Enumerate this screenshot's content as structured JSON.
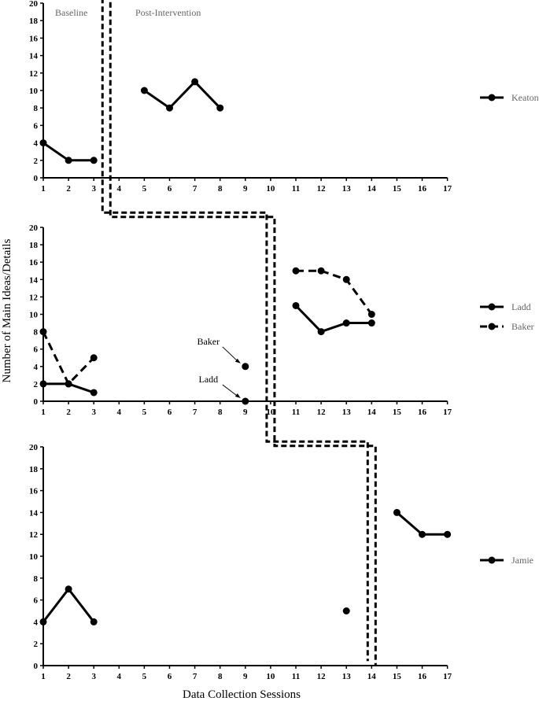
{
  "phase_labels": [
    "Baseline",
    "Post-Intervention"
  ],
  "ylabel": "Number of Main Ideas/Details",
  "xlabel": "Data Collection Sessions",
  "chart_data": [
    {
      "type": "line",
      "xlim": [
        1,
        17
      ],
      "ylim": [
        0,
        20
      ],
      "x_ticks": [
        1,
        2,
        3,
        4,
        5,
        6,
        7,
        8,
        9,
        10,
        11,
        12,
        13,
        14,
        15,
        16,
        17
      ],
      "y_ticks": [
        0,
        2,
        4,
        6,
        8,
        10,
        12,
        14,
        16,
        18,
        20
      ],
      "phase_change_after": 3.5,
      "series": [
        {
          "name": "Keaton",
          "style": "solid",
          "points": [
            [
              1,
              4
            ],
            [
              2,
              2
            ],
            [
              3,
              2
            ],
            [
              5,
              10
            ],
            [
              6,
              8
            ],
            [
              7,
              11
            ],
            [
              8,
              8
            ]
          ],
          "segments": [
            [
              0,
              1,
              2
            ],
            [
              3,
              4,
              5,
              6
            ]
          ]
        }
      ],
      "legend": [
        "Keaton"
      ]
    },
    {
      "type": "line",
      "xlim": [
        1,
        17
      ],
      "ylim": [
        0,
        20
      ],
      "x_ticks": [
        1,
        2,
        3,
        4,
        5,
        6,
        7,
        8,
        9,
        10,
        11,
        12,
        13,
        14,
        15,
        16,
        17
      ],
      "y_ticks": [
        0,
        2,
        4,
        6,
        8,
        10,
        12,
        14,
        16,
        18,
        20
      ],
      "phase_change_after": 10,
      "series": [
        {
          "name": "Ladd",
          "style": "solid",
          "points": [
            [
              1,
              2
            ],
            [
              2,
              2
            ],
            [
              3,
              1
            ],
            [
              9,
              0
            ],
            [
              11,
              11
            ],
            [
              12,
              8
            ],
            [
              13,
              9
            ],
            [
              14,
              9
            ]
          ],
          "segments": [
            [
              0,
              1,
              2
            ],
            [
              3
            ],
            [
              4,
              5,
              6,
              7
            ]
          ]
        },
        {
          "name": "Baker",
          "style": "dashed",
          "points": [
            [
              1,
              8
            ],
            [
              2,
              2
            ],
            [
              3,
              5
            ],
            [
              9,
              4
            ],
            [
              11,
              15
            ],
            [
              12,
              15
            ],
            [
              13,
              14
            ],
            [
              14,
              10
            ]
          ],
          "segments": [
            [
              0,
              1,
              2
            ],
            [
              3
            ],
            [
              4,
              5,
              6,
              7
            ]
          ]
        }
      ],
      "legend": [
        "Ladd",
        "Baker"
      ],
      "annotations": [
        {
          "text": "Baker",
          "points_to": [
            9,
            4
          ]
        },
        {
          "text": "Ladd",
          "points_to": [
            9,
            0
          ]
        }
      ]
    },
    {
      "type": "line",
      "xlim": [
        1,
        17
      ],
      "ylim": [
        0,
        20
      ],
      "x_ticks": [
        1,
        2,
        3,
        4,
        5,
        6,
        7,
        8,
        9,
        10,
        11,
        12,
        13,
        14,
        15,
        16,
        17
      ],
      "y_ticks": [
        0,
        2,
        4,
        6,
        8,
        10,
        12,
        14,
        16,
        18,
        20
      ],
      "phase_change_after": 14,
      "series": [
        {
          "name": "Jamie",
          "style": "solid",
          "points": [
            [
              1,
              4
            ],
            [
              2,
              7
            ],
            [
              3,
              4
            ],
            [
              13,
              5
            ],
            [
              15,
              14
            ],
            [
              16,
              12
            ],
            [
              17,
              12
            ]
          ],
          "segments": [
            [
              0,
              1,
              2
            ],
            [
              3
            ],
            [
              4,
              5,
              6
            ]
          ]
        }
      ],
      "legend": [
        "Jamie"
      ]
    }
  ]
}
